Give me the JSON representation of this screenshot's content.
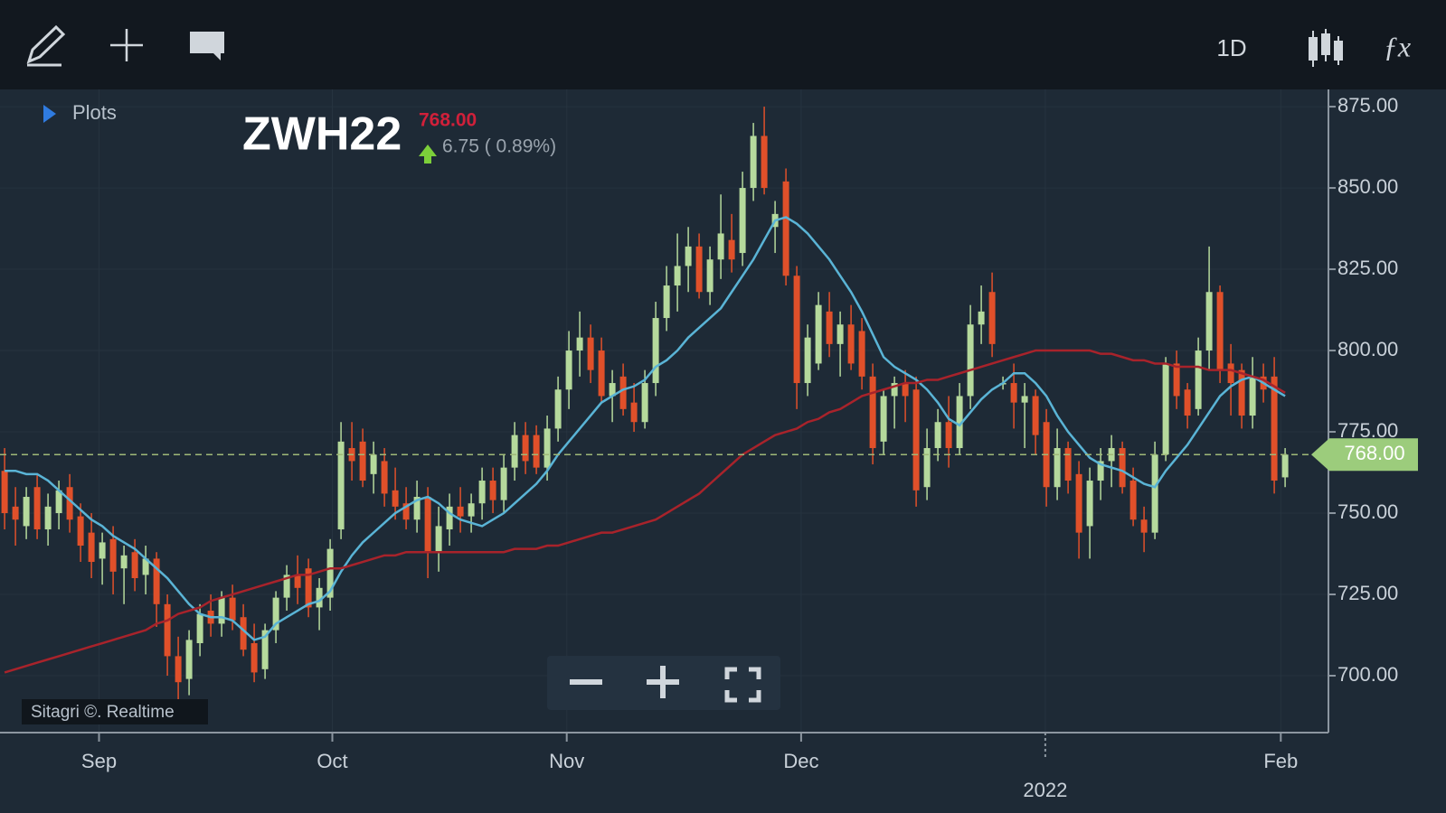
{
  "ui": {
    "plots": "Plots",
    "interval": "1D",
    "credit": "Sitagri ©. Realtime"
  },
  "chart_data": {
    "type": "candlestick",
    "title": "ZWH22",
    "current": {
      "value": 768,
      "label": "768.00"
    },
    "change": {
      "value": 6.75,
      "label": "6.75 ( 0.89%)"
    },
    "up_color": "#b5d99c",
    "down_color": "#e0502a",
    "ylim": [
      682.5,
      880.3
    ],
    "yticks": [
      {
        "value": 875,
        "label": "875.00"
      },
      {
        "value": 850,
        "label": "850.00"
      },
      {
        "value": 825,
        "label": "825.00"
      },
      {
        "value": 800,
        "label": "800.00"
      },
      {
        "value": 775,
        "label": "775.00"
      },
      {
        "value": 750,
        "label": "750.00"
      },
      {
        "value": 725,
        "label": "725.00"
      },
      {
        "value": 700,
        "label": "700.00"
      }
    ],
    "xticks": [
      {
        "value": 8.7,
        "label": "Sep"
      },
      {
        "value": 30.2,
        "label": "Oct"
      },
      {
        "value": 51.8,
        "label": "Nov"
      },
      {
        "value": 73.4,
        "label": "Dec"
      },
      {
        "value": 95.9,
        "label": "2022"
      },
      {
        "value": 117.6,
        "label": "Feb"
      }
    ],
    "grid": true,
    "ohlc": [
      [
        763,
        770,
        745,
        750
      ],
      [
        752,
        758,
        740,
        748
      ],
      [
        746,
        758,
        742,
        755
      ],
      [
        758,
        762,
        742,
        745
      ],
      [
        745,
        756,
        740,
        752
      ],
      [
        750,
        760,
        745,
        757
      ],
      [
        758,
        762,
        744,
        748
      ],
      [
        749,
        753,
        735,
        740
      ],
      [
        744,
        750,
        730,
        735
      ],
      [
        736,
        744,
        728,
        741
      ],
      [
        742,
        746,
        725,
        732
      ],
      [
        733,
        740,
        722,
        737
      ],
      [
        738,
        742,
        726,
        730
      ],
      [
        731,
        740,
        725,
        736
      ],
      [
        736,
        738,
        715,
        722
      ],
      [
        722,
        725,
        700,
        706
      ],
      [
        706,
        712,
        690,
        698
      ],
      [
        699,
        714,
        694,
        711
      ],
      [
        710,
        722,
        706,
        719
      ],
      [
        720,
        725,
        712,
        716
      ],
      [
        716,
        726,
        712,
        724
      ],
      [
        724,
        728,
        714,
        717
      ],
      [
        718,
        722,
        706,
        708
      ],
      [
        710,
        716,
        698,
        701
      ],
      [
        702,
        716,
        699,
        714
      ],
      [
        714,
        726,
        710,
        724
      ],
      [
        724,
        734,
        720,
        731
      ],
      [
        731,
        737,
        722,
        727
      ],
      [
        733,
        736,
        718,
        721
      ],
      [
        721,
        730,
        714,
        727
      ],
      [
        724,
        742,
        720,
        739
      ],
      [
        745,
        778,
        742,
        772
      ],
      [
        770,
        778,
        760,
        766
      ],
      [
        772,
        776,
        758,
        760
      ],
      [
        762,
        772,
        756,
        768
      ],
      [
        766,
        770,
        752,
        756
      ],
      [
        757,
        764,
        748,
        752
      ],
      [
        753,
        758,
        745,
        748
      ],
      [
        748,
        760,
        744,
        755
      ],
      [
        755,
        758,
        730,
        738
      ],
      [
        738,
        752,
        732,
        746
      ],
      [
        745,
        756,
        740,
        752
      ],
      [
        752,
        758,
        744,
        749
      ],
      [
        749,
        756,
        744,
        753
      ],
      [
        753,
        764,
        748,
        760
      ],
      [
        760,
        764,
        750,
        754
      ],
      [
        754,
        768,
        750,
        764
      ],
      [
        764,
        778,
        760,
        774
      ],
      [
        774,
        778,
        762,
        766
      ],
      [
        774,
        777,
        762,
        764
      ],
      [
        764,
        780,
        760,
        776
      ],
      [
        776,
        792,
        772,
        788
      ],
      [
        788,
        806,
        782,
        800
      ],
      [
        800,
        812,
        792,
        804
      ],
      [
        804,
        808,
        790,
        794
      ],
      [
        800,
        804,
        784,
        786
      ],
      [
        786,
        794,
        778,
        790
      ],
      [
        792,
        796,
        780,
        782
      ],
      [
        784,
        790,
        775,
        778
      ],
      [
        778,
        794,
        776,
        790
      ],
      [
        790,
        815,
        786,
        810
      ],
      [
        810,
        826,
        806,
        820
      ],
      [
        820,
        836,
        812,
        826
      ],
      [
        826,
        838,
        818,
        832
      ],
      [
        832,
        836,
        816,
        818
      ],
      [
        818,
        832,
        814,
        828
      ],
      [
        828,
        848,
        822,
        836
      ],
      [
        834,
        842,
        824,
        828
      ],
      [
        830,
        855,
        826,
        850
      ],
      [
        850,
        870,
        846,
        866
      ],
      [
        866,
        875,
        848,
        850
      ],
      [
        838,
        846,
        830,
        842
      ],
      [
        852,
        856,
        820,
        823
      ],
      [
        823,
        826,
        782,
        790
      ],
      [
        790,
        808,
        786,
        804
      ],
      [
        796,
        818,
        794,
        814
      ],
      [
        812,
        818,
        798,
        802
      ],
      [
        802,
        812,
        792,
        808
      ],
      [
        808,
        814,
        794,
        796
      ],
      [
        806,
        810,
        788,
        792
      ],
      [
        792,
        796,
        765,
        770
      ],
      [
        772,
        788,
        768,
        786
      ],
      [
        786,
        792,
        776,
        790
      ],
      [
        790,
        794,
        778,
        786
      ],
      [
        788,
        792,
        752,
        757
      ],
      [
        758,
        776,
        754,
        770
      ],
      [
        770,
        782,
        766,
        778
      ],
      [
        778,
        786,
        764,
        770
      ],
      [
        770,
        790,
        768,
        786
      ],
      [
        786,
        814,
        782,
        808
      ],
      [
        808,
        820,
        802,
        812
      ],
      [
        818,
        824,
        798,
        802
      ],
      [
        790,
        792,
        788,
        790
      ],
      [
        790,
        796,
        776,
        784
      ],
      [
        784,
        790,
        770,
        786
      ],
      [
        786,
        788,
        768,
        774
      ],
      [
        778,
        782,
        752,
        758
      ],
      [
        758,
        776,
        754,
        770
      ],
      [
        770,
        772,
        756,
        760
      ],
      [
        762,
        766,
        736,
        744
      ],
      [
        746,
        764,
        736,
        760
      ],
      [
        760,
        770,
        754,
        766
      ],
      [
        766,
        774,
        758,
        770
      ],
      [
        770,
        772,
        756,
        758
      ],
      [
        760,
        764,
        746,
        748
      ],
      [
        748,
        752,
        738,
        744
      ],
      [
        744,
        772,
        742,
        768
      ],
      [
        768,
        798,
        766,
        796
      ],
      [
        796,
        800,
        782,
        786
      ],
      [
        788,
        790,
        776,
        780
      ],
      [
        782,
        804,
        780,
        800
      ],
      [
        800,
        832,
        794,
        818
      ],
      [
        818,
        820,
        790,
        794
      ],
      [
        796,
        802,
        780,
        790
      ],
      [
        794,
        796,
        776,
        780
      ],
      [
        780,
        798,
        776,
        792
      ],
      [
        792,
        796,
        784,
        788
      ],
      [
        792,
        798,
        756,
        760
      ],
      [
        761,
        770,
        758,
        768
      ]
    ],
    "lines": [
      {
        "color": "#5ab4d6",
        "values": [
          763,
          763,
          762,
          762,
          760,
          757,
          754,
          751,
          748,
          746,
          743,
          741,
          739,
          736,
          733,
          730,
          726,
          722,
          719,
          718,
          718,
          717,
          714,
          711,
          712,
          716,
          718,
          720,
          722,
          723,
          726,
          732,
          737,
          741,
          744,
          747,
          750,
          752,
          754,
          755,
          753,
          750,
          748,
          747,
          746,
          748,
          750,
          753,
          756,
          759,
          763,
          768,
          772,
          776,
          780,
          784,
          786,
          788,
          789,
          791,
          795,
          797,
          800,
          804,
          807,
          810,
          813,
          818,
          823,
          828,
          834,
          840,
          841,
          839,
          836,
          832,
          828,
          823,
          818,
          812,
          805,
          798,
          795,
          793,
          791,
          788,
          784,
          779,
          777,
          781,
          785,
          788,
          790,
          793,
          793,
          790,
          786,
          780,
          775,
          771,
          767,
          765,
          764,
          763,
          761,
          759,
          758,
          763,
          767,
          771,
          776,
          781,
          786,
          789,
          791,
          792,
          790,
          788,
          786
        ]
      },
      {
        "color": "#a8232b",
        "values": [
          701,
          702,
          703,
          704,
          705,
          706,
          707,
          708,
          709,
          710,
          711,
          712,
          713,
          714,
          716,
          717,
          719,
          720,
          721,
          723,
          724,
          725,
          726,
          727,
          728,
          729,
          730,
          731,
          731,
          732,
          733,
          733,
          734,
          735,
          736,
          737,
          737,
          738,
          738,
          738,
          738,
          738,
          738,
          738,
          738,
          738,
          738,
          739,
          739,
          739,
          740,
          740,
          741,
          742,
          743,
          744,
          744,
          745,
          746,
          747,
          748,
          750,
          752,
          754,
          756,
          759,
          762,
          765,
          768,
          770,
          772,
          774,
          775,
          776,
          778,
          779,
          781,
          782,
          784,
          786,
          787,
          788,
          789,
          790,
          790,
          791,
          791,
          792,
          793,
          794,
          795,
          796,
          797,
          798,
          799,
          800,
          800,
          800,
          800,
          800,
          800,
          799,
          799,
          798,
          797,
          797,
          796,
          796,
          795,
          795,
          795,
          794,
          794,
          794,
          793,
          792,
          791,
          789,
          787
        ]
      }
    ]
  }
}
